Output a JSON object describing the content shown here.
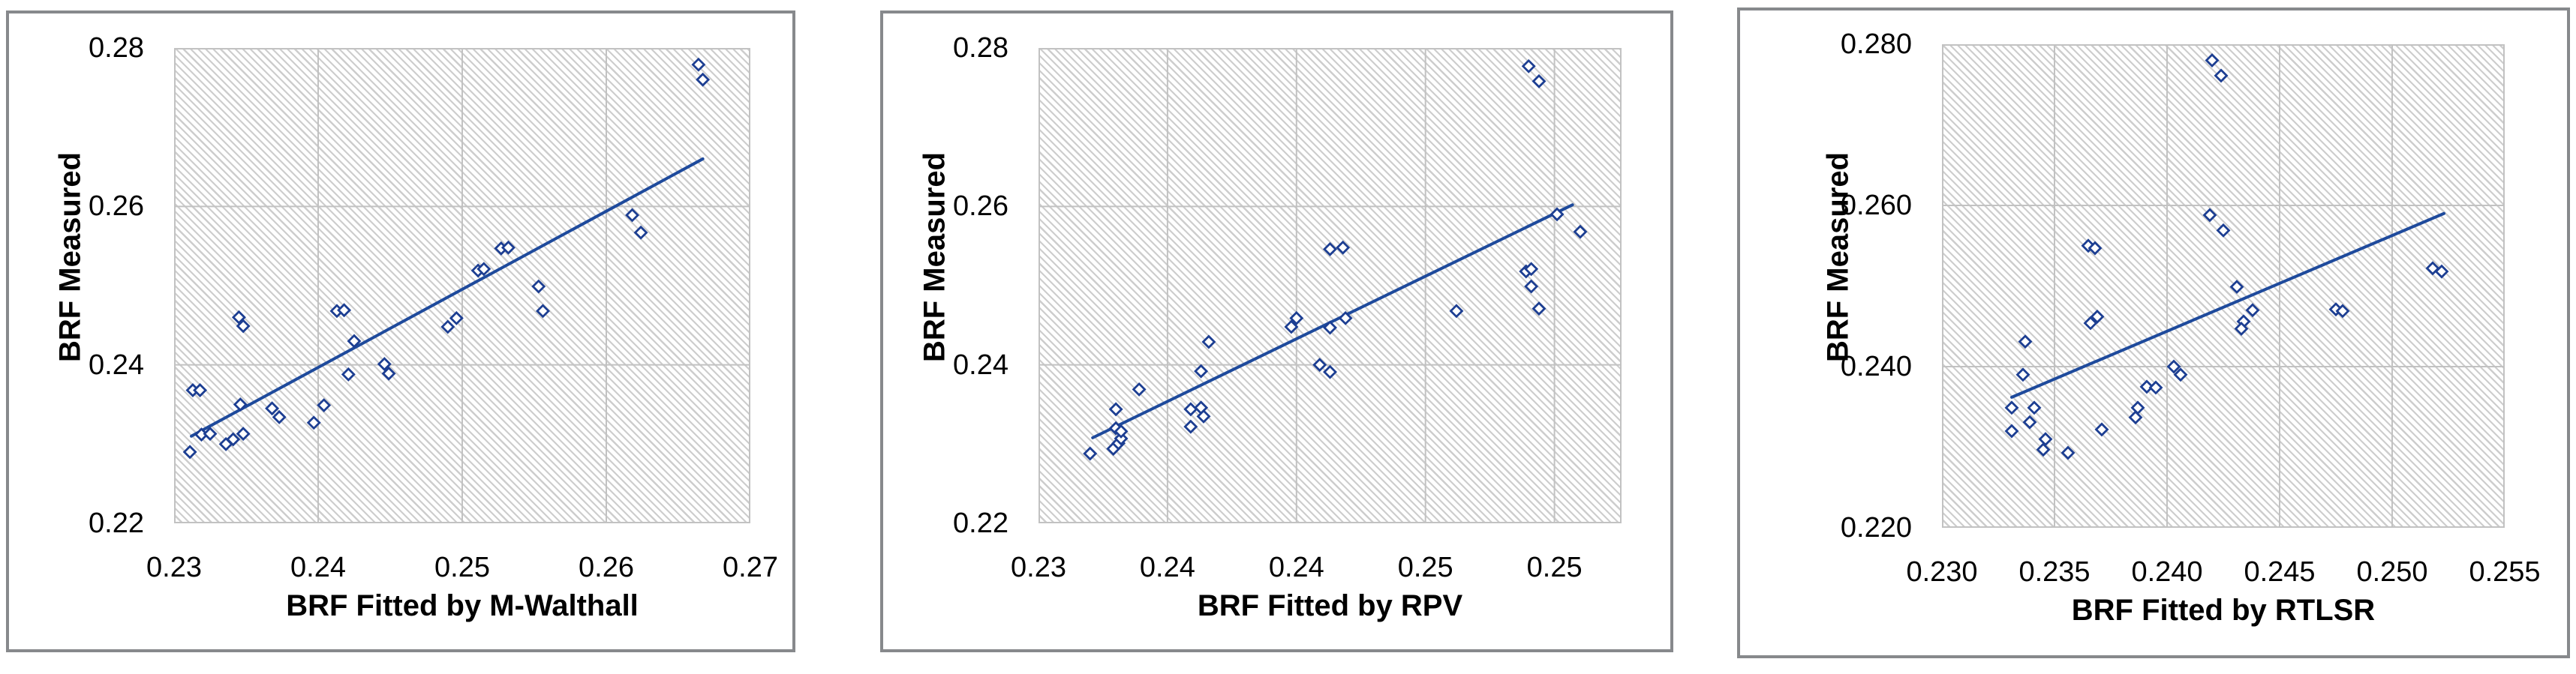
{
  "page": {
    "background": "#ffffff",
    "description": "Three scatter plots comparing measured BRF against BRF fitted by three models"
  },
  "colors": {
    "marker_stroke": "#1c3e92",
    "marker_fill": "#ffffff",
    "trend_line": "#1e4a9c",
    "gridline": "#c2c2c2",
    "plot_hatch": "#cdcdcd",
    "frame_border": "#87898c",
    "text": "#000000"
  },
  "chart_data": [
    {
      "type": "scatter",
      "title": "",
      "xlabel": "BRF Fitted by M-Walthall",
      "ylabel": "BRF Measured",
      "xlim": [
        0.23,
        0.27
      ],
      "ylim": [
        0.22,
        0.28
      ],
      "grid": true,
      "legend": "none",
      "x_ticks": [
        {
          "value": 0.23,
          "label": "0.23"
        },
        {
          "value": 0.24,
          "label": "0.24"
        },
        {
          "value": 0.25,
          "label": "0.25"
        },
        {
          "value": 0.26,
          "label": "0.26"
        },
        {
          "value": 0.27,
          "label": "0.27"
        }
      ],
      "y_ticks": [
        {
          "value": 0.22,
          "label": "0.22"
        },
        {
          "value": 0.24,
          "label": "0.24"
        },
        {
          "value": 0.26,
          "label": "0.26"
        },
        {
          "value": 0.28,
          "label": "0.28"
        }
      ],
      "grid_x": [
        0.24,
        0.25,
        0.26
      ],
      "grid_y": [
        0.24,
        0.26
      ],
      "trend_line": [
        [
          0.2312,
          0.231
        ],
        [
          0.2667,
          0.266
        ]
      ],
      "points": [
        [
          0.2311,
          0.229
        ],
        [
          0.2319,
          0.2312
        ],
        [
          0.2325,
          0.2313
        ],
        [
          0.2313,
          0.2368
        ],
        [
          0.2318,
          0.2368
        ],
        [
          0.2336,
          0.23
        ],
        [
          0.2341,
          0.2306
        ],
        [
          0.2348,
          0.2313
        ],
        [
          0.2346,
          0.235
        ],
        [
          0.2345,
          0.246
        ],
        [
          0.2348,
          0.2449
        ],
        [
          0.2368,
          0.2345
        ],
        [
          0.2373,
          0.2334
        ],
        [
          0.2397,
          0.2327
        ],
        [
          0.2404,
          0.2349
        ],
        [
          0.2413,
          0.2468
        ],
        [
          0.2418,
          0.2469
        ],
        [
          0.2421,
          0.2388
        ],
        [
          0.2425,
          0.243
        ],
        [
          0.2446,
          0.2401
        ],
        [
          0.2449,
          0.2389
        ],
        [
          0.249,
          0.2448
        ],
        [
          0.2496,
          0.2459
        ],
        [
          0.2511,
          0.2519
        ],
        [
          0.2515,
          0.2521
        ],
        [
          0.2527,
          0.2547
        ],
        [
          0.2532,
          0.2548
        ],
        [
          0.2553,
          0.2499
        ],
        [
          0.2556,
          0.2468
        ],
        [
          0.2618,
          0.2589
        ],
        [
          0.2624,
          0.2567
        ],
        [
          0.2664,
          0.2779
        ],
        [
          0.2667,
          0.276
        ]
      ]
    },
    {
      "type": "scatter",
      "title": "",
      "xlabel": "BRF Fitted by RPV",
      "ylabel": "BRF Measured",
      "xlim": [
        0.23,
        0.2526
      ],
      "ylim": [
        0.22,
        0.28
      ],
      "grid": true,
      "legend": "none",
      "x_ticks": [
        {
          "value": 0.23,
          "label": "0.23"
        },
        {
          "value": 0.235,
          "label": "0.24"
        },
        {
          "value": 0.24,
          "label": "0.24"
        },
        {
          "value": 0.245,
          "label": "0.25"
        },
        {
          "value": 0.25,
          "label": "0.25"
        }
      ],
      "y_ticks": [
        {
          "value": 0.22,
          "label": "0.22"
        },
        {
          "value": 0.24,
          "label": "0.24"
        },
        {
          "value": 0.26,
          "label": "0.26"
        },
        {
          "value": 0.28,
          "label": "0.28"
        }
      ],
      "grid_x": [
        0.235,
        0.24,
        0.245,
        0.25
      ],
      "grid_y": [
        0.24,
        0.26
      ],
      "trend_line": [
        [
          0.2321,
          0.2308
        ],
        [
          0.2507,
          0.2602
        ]
      ],
      "points": [
        [
          0.232,
          0.2288
        ],
        [
          0.2329,
          0.2294
        ],
        [
          0.2331,
          0.2301
        ],
        [
          0.2332,
          0.2307
        ],
        [
          0.233,
          0.232
        ],
        [
          0.2332,
          0.2316
        ],
        [
          0.233,
          0.2344
        ],
        [
          0.2339,
          0.2369
        ],
        [
          0.2359,
          0.2344
        ],
        [
          0.2363,
          0.2346
        ],
        [
          0.2364,
          0.2335
        ],
        [
          0.2359,
          0.2322
        ],
        [
          0.2363,
          0.2392
        ],
        [
          0.2366,
          0.2429
        ],
        [
          0.2398,
          0.2448
        ],
        [
          0.24,
          0.2459
        ],
        [
          0.2409,
          0.24
        ],
        [
          0.2413,
          0.2391
        ],
        [
          0.2413,
          0.2447
        ],
        [
          0.2419,
          0.2459
        ],
        [
          0.2413,
          0.2546
        ],
        [
          0.2418,
          0.2548
        ],
        [
          0.2462,
          0.2468
        ],
        [
          0.2489,
          0.2518
        ],
        [
          0.2491,
          0.2521
        ],
        [
          0.2491,
          0.2499
        ],
        [
          0.2494,
          0.2471
        ],
        [
          0.249,
          0.2777
        ],
        [
          0.2494,
          0.2758
        ],
        [
          0.2501,
          0.259
        ],
        [
          0.251,
          0.2568
        ]
      ]
    },
    {
      "type": "scatter",
      "title": "",
      "xlabel": "BRF Fitted by RTLSR",
      "ylabel": "BRF Measured",
      "xlim": [
        0.23,
        0.255
      ],
      "ylim": [
        0.22,
        0.28
      ],
      "grid": true,
      "legend": "none",
      "x_ticks": [
        {
          "value": 0.23,
          "label": "0.230"
        },
        {
          "value": 0.235,
          "label": "0.235"
        },
        {
          "value": 0.24,
          "label": "0.240"
        },
        {
          "value": 0.245,
          "label": "0.245"
        },
        {
          "value": 0.25,
          "label": "0.250"
        },
        {
          "value": 0.255,
          "label": "0.255"
        }
      ],
      "y_ticks": [
        {
          "value": 0.22,
          "label": "0.220"
        },
        {
          "value": 0.24,
          "label": "0.240"
        },
        {
          "value": 0.26,
          "label": "0.260"
        },
        {
          "value": 0.28,
          "label": "0.280"
        }
      ],
      "grid_x": [
        0.235,
        0.24,
        0.245,
        0.25
      ],
      "grid_y": [
        0.24,
        0.26
      ],
      "trend_line": [
        [
          0.2331,
          0.2362
        ],
        [
          0.2523,
          0.259
        ]
      ],
      "points": [
        [
          0.242,
          0.278
        ],
        [
          0.2424,
          0.2761
        ],
        [
          0.2419,
          0.2588
        ],
        [
          0.2425,
          0.2569
        ],
        [
          0.2365,
          0.255
        ],
        [
          0.2368,
          0.2547
        ],
        [
          0.2518,
          0.2522
        ],
        [
          0.2522,
          0.2518
        ],
        [
          0.2431,
          0.2499
        ],
        [
          0.2475,
          0.2471
        ],
        [
          0.2478,
          0.2469
        ],
        [
          0.2438,
          0.247
        ],
        [
          0.2366,
          0.2454
        ],
        [
          0.2369,
          0.2462
        ],
        [
          0.2434,
          0.2456
        ],
        [
          0.2433,
          0.2447
        ],
        [
          0.2337,
          0.2431
        ],
        [
          0.2336,
          0.239
        ],
        [
          0.2403,
          0.24
        ],
        [
          0.2406,
          0.239
        ],
        [
          0.2391,
          0.2375
        ],
        [
          0.2395,
          0.2374
        ],
        [
          0.2331,
          0.2349
        ],
        [
          0.2341,
          0.2349
        ],
        [
          0.2387,
          0.2349
        ],
        [
          0.2386,
          0.2337
        ],
        [
          0.2339,
          0.2331
        ],
        [
          0.2331,
          0.232
        ],
        [
          0.2371,
          0.2322
        ],
        [
          0.2346,
          0.231
        ],
        [
          0.2345,
          0.2297
        ],
        [
          0.2356,
          0.2293
        ]
      ]
    }
  ]
}
